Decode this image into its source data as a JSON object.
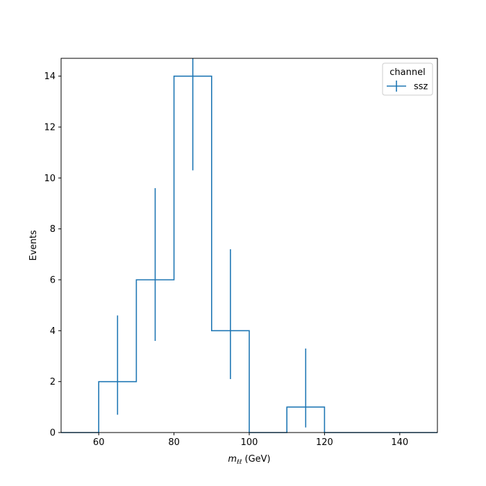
{
  "chart_data": {
    "type": "histogram",
    "bin_edges": [
      50,
      60,
      70,
      80,
      90,
      100,
      110,
      120,
      130,
      140,
      150
    ],
    "series": [
      {
        "name": "ssz",
        "values": [
          0,
          2,
          6,
          14,
          4,
          0,
          1,
          0,
          0,
          0
        ],
        "errors": [
          [
            0,
            0
          ],
          [
            1.3,
            2.6
          ],
          [
            2.4,
            3.6
          ],
          [
            3.7,
            4.8
          ],
          [
            1.9,
            3.2
          ],
          [
            0,
            0
          ],
          [
            0.8,
            2.3
          ],
          [
            0,
            0
          ],
          [
            0,
            0
          ],
          [
            0,
            0
          ]
        ],
        "color": "#1f77b4"
      }
    ],
    "xlim": [
      50,
      150
    ],
    "ylim": [
      0,
      14.7
    ],
    "x_ticks": [
      60,
      80,
      100,
      120,
      140
    ],
    "y_ticks": [
      0,
      2,
      4,
      6,
      8,
      10,
      12,
      14
    ],
    "xlabel_math": "m",
    "xlabel_sub": "ℓℓ",
    "xlabel_unit": "(GeV)",
    "ylabel": "Events",
    "legend": {
      "title": "channel",
      "placement": "top-right"
    },
    "grid": false
  }
}
